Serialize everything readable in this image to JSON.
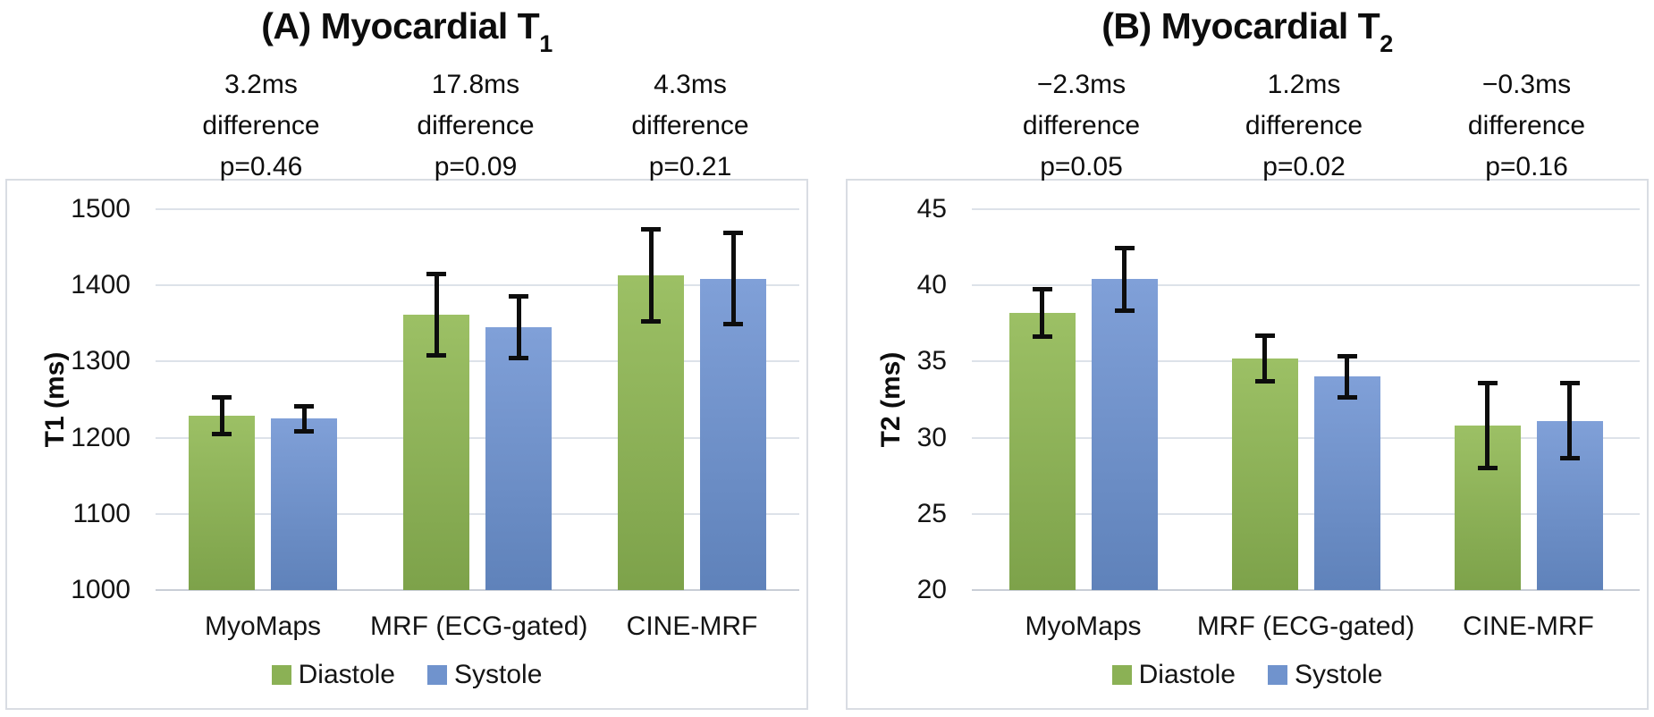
{
  "figure": {
    "background": "#ffffff",
    "text_color": "#111111"
  },
  "colors": {
    "gridline": "#dde2e9",
    "baseline": "#c9ced6",
    "panel_border": "#d9dde3",
    "error_bar": "#0d0d0d"
  },
  "chart_data": [
    {
      "type": "bar",
      "title": {
        "text": "(A) Myocardial T",
        "subscript": "1"
      },
      "ylabel": "T1 (ms)",
      "ylim": [
        1000,
        1500
      ],
      "yticks": [
        1000,
        1100,
        1200,
        1300,
        1400,
        1500
      ],
      "grid": true,
      "legend_position": "bottom",
      "categories": [
        "MyoMaps",
        "MRF (ECG-gated)",
        "CINE-MRF"
      ],
      "series": [
        {
          "name": "Diastole",
          "color_top": "#9cc065",
          "color_bottom": "#7da24a",
          "swatch": "#8bb155",
          "values": [
            1229,
            1362,
            1413
          ],
          "errors": [
            25,
            54,
            61
          ]
        },
        {
          "name": "Systole",
          "color_top": "#80a0d8",
          "color_bottom": "#5f82ba",
          "swatch": "#7093cd",
          "values": [
            1225,
            1345,
            1409
          ],
          "errors": [
            17,
            41,
            60
          ]
        }
      ],
      "annotations": [
        {
          "difference": "3.2ms",
          "label": "difference",
          "p_value": "p=0.46"
        },
        {
          "difference": "17.8ms",
          "label": "difference",
          "p_value": "p=0.09"
        },
        {
          "difference": "4.3ms",
          "label": "difference",
          "p_value": "p=0.21"
        }
      ]
    },
    {
      "type": "bar",
      "title": {
        "text": "(B) Myocardial T",
        "subscript": "2"
      },
      "ylabel": "T2 (ms)",
      "ylim": [
        20,
        45
      ],
      "yticks": [
        20,
        25,
        30,
        35,
        40,
        45
      ],
      "grid": true,
      "legend_position": "bottom",
      "categories": [
        "MyoMaps",
        "MRF (ECG-gated)",
        "CINE-MRF"
      ],
      "series": [
        {
          "name": "Diastole",
          "color_top": "#9cc065",
          "color_bottom": "#7da24a",
          "swatch": "#8bb155",
          "values": [
            38.2,
            35.2,
            30.8
          ],
          "errors": [
            1.6,
            1.5,
            2.8
          ]
        },
        {
          "name": "Systole",
          "color_top": "#80a0d8",
          "color_bottom": "#5f82ba",
          "swatch": "#7093cd",
          "values": [
            40.4,
            34.0,
            31.1
          ],
          "errors": [
            2.1,
            1.4,
            2.5
          ]
        }
      ],
      "annotations": [
        {
          "difference": "−2.3ms",
          "label": "difference",
          "p_value": "p=0.05"
        },
        {
          "difference": "1.2ms",
          "label": "difference",
          "p_value": "p=0.02"
        },
        {
          "difference": "−0.3ms",
          "label": "difference",
          "p_value": "p=0.16"
        }
      ]
    }
  ]
}
